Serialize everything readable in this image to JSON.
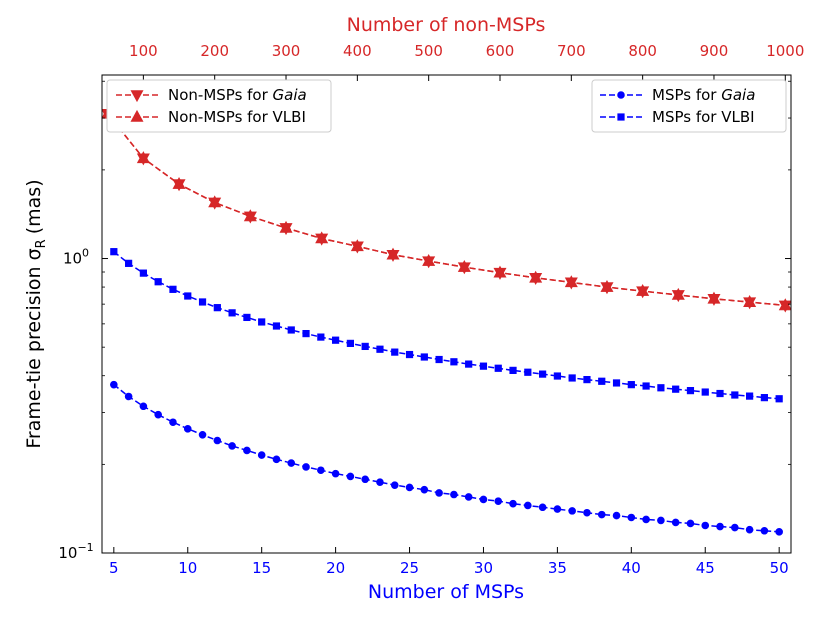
{
  "chart_data": {
    "type": "line",
    "title": "",
    "xlabel": "Number of MSPs",
    "x2label": "Number of non-MSPs",
    "ylabel_main": "Frame-tie precision σ",
    "ylabel_sub": "R",
    "ylabel_unit": "(mas)",
    "yscale": "log",
    "xlim": [
      4.2,
      50.8
    ],
    "x2lim": [
      42,
      1008
    ],
    "ylim": [
      0.1,
      4.2
    ],
    "grid": false,
    "xticks": [
      5,
      10,
      15,
      20,
      25,
      30,
      35,
      40,
      45,
      50
    ],
    "x2ticks": [
      100,
      200,
      300,
      400,
      500,
      600,
      700,
      800,
      900,
      1000
    ],
    "yticks": [
      {
        "value": 1.0,
        "base": "10",
        "exp": "0"
      },
      {
        "value": 0.1,
        "base": "10",
        "exp": "−1"
      }
    ],
    "colors": {
      "red": "#d62728",
      "blue": "#0000ff",
      "xlabel": "#0000ff",
      "x2label": "#d62728"
    },
    "series": [
      {
        "name": "Non-MSPs for Gaia",
        "legend_prefix": "Non-MSPs for ",
        "legend_italic": "Gaia",
        "axis": "top",
        "color": "#d62728",
        "marker": "triangle-down",
        "x": [
          50,
          100,
          150,
          200,
          250,
          300,
          350,
          400,
          450,
          500,
          550,
          600,
          650,
          700,
          750,
          800,
          850,
          900,
          950,
          1000
        ],
        "y": [
          3.1,
          2.19,
          1.79,
          1.55,
          1.39,
          1.27,
          1.17,
          1.1,
          1.03,
          0.98,
          0.935,
          0.895,
          0.86,
          0.83,
          0.8,
          0.775,
          0.752,
          0.73,
          0.711,
          0.693
        ]
      },
      {
        "name": "Non-MSPs for VLBI",
        "legend_prefix": "Non-MSPs for VLBI",
        "legend_italic": "",
        "axis": "top",
        "color": "#d62728",
        "marker": "triangle-up",
        "x": [
          50,
          100,
          150,
          200,
          250,
          300,
          350,
          400,
          450,
          500,
          550,
          600,
          650,
          700,
          750,
          800,
          850,
          900,
          950,
          1000
        ],
        "y": [
          3.1,
          2.19,
          1.79,
          1.55,
          1.39,
          1.27,
          1.17,
          1.1,
          1.03,
          0.98,
          0.935,
          0.895,
          0.86,
          0.83,
          0.8,
          0.775,
          0.752,
          0.73,
          0.711,
          0.693
        ]
      },
      {
        "name": "MSPs for Gaia",
        "legend_prefix": "MSPs for ",
        "legend_italic": "Gaia",
        "axis": "bottom",
        "color": "#0000ff",
        "marker": "circle",
        "x": [
          5,
          6,
          7,
          8,
          9,
          10,
          11,
          12,
          13,
          14,
          15,
          16,
          17,
          18,
          19,
          20,
          21,
          22,
          23,
          24,
          25,
          26,
          27,
          28,
          29,
          30,
          31,
          32,
          33,
          34,
          35,
          36,
          37,
          38,
          39,
          40,
          41,
          42,
          43,
          44,
          45,
          46,
          47,
          48,
          49,
          50
        ],
        "y": [
          0.373,
          0.34,
          0.315,
          0.295,
          0.278,
          0.264,
          0.252,
          0.241,
          0.231,
          0.223,
          0.215,
          0.208,
          0.202,
          0.196,
          0.191,
          0.186,
          0.182,
          0.178,
          0.174,
          0.17,
          0.167,
          0.164,
          0.16,
          0.158,
          0.155,
          0.152,
          0.15,
          0.147,
          0.145,
          0.143,
          0.141,
          0.139,
          0.137,
          0.135,
          0.134,
          0.132,
          0.13,
          0.129,
          0.127,
          0.126,
          0.124,
          0.123,
          0.122,
          0.12,
          0.119,
          0.118
        ]
      },
      {
        "name": "MSPs for VLBI",
        "legend_prefix": "MSPs for VLBI",
        "legend_italic": "",
        "axis": "bottom",
        "color": "#0000ff",
        "marker": "square",
        "x": [
          5,
          6,
          7,
          8,
          9,
          10,
          11,
          12,
          13,
          14,
          15,
          16,
          17,
          18,
          19,
          20,
          21,
          22,
          23,
          24,
          25,
          26,
          27,
          28,
          29,
          30,
          31,
          32,
          33,
          34,
          35,
          36,
          37,
          38,
          39,
          40,
          41,
          42,
          43,
          44,
          45,
          46,
          47,
          48,
          49,
          50
        ],
        "y": [
          1.055,
          0.963,
          0.892,
          0.834,
          0.786,
          0.746,
          0.712,
          0.681,
          0.654,
          0.631,
          0.609,
          0.59,
          0.572,
          0.556,
          0.541,
          0.528,
          0.515,
          0.503,
          0.492,
          0.481,
          0.472,
          0.463,
          0.454,
          0.446,
          0.438,
          0.431,
          0.424,
          0.417,
          0.411,
          0.405,
          0.399,
          0.393,
          0.388,
          0.383,
          0.378,
          0.373,
          0.369,
          0.364,
          0.36,
          0.356,
          0.352,
          0.348,
          0.344,
          0.341,
          0.337,
          0.334
        ]
      }
    ],
    "legends": [
      {
        "position": "upper-left",
        "entries": [
          0,
          1
        ]
      },
      {
        "position": "upper-right",
        "entries": [
          2,
          3
        ]
      }
    ]
  }
}
